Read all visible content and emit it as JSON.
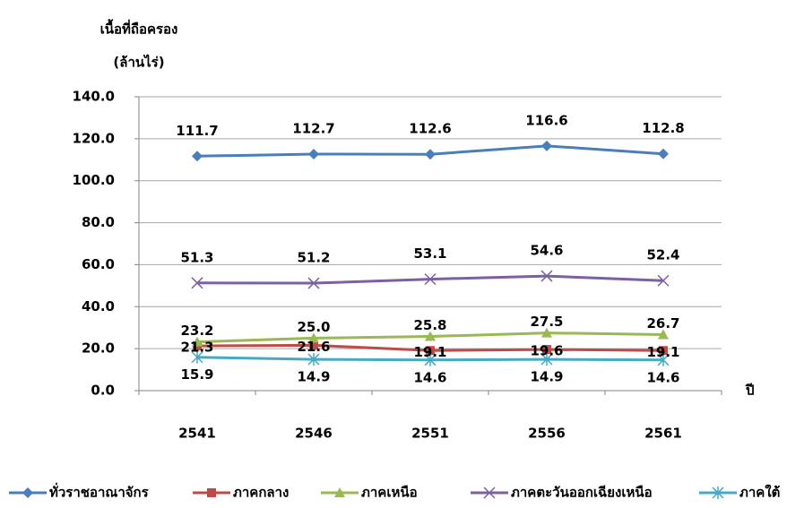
{
  "chart_data": {
    "type": "line",
    "y_axis_label": [
      "เนื้อที่ถือครอง",
      "(ล้านไร่)"
    ],
    "x_axis_label": "ปี",
    "categories": [
      "2541",
      "2546",
      "2551",
      "2556",
      "2561"
    ],
    "ylim": [
      0,
      140
    ],
    "yticks": [
      {
        "value": 0,
        "label": "0.0"
      },
      {
        "value": 20,
        "label": "20.0"
      },
      {
        "value": 40,
        "label": "40.0"
      },
      {
        "value": 60,
        "label": "60.0"
      },
      {
        "value": 80,
        "label": "80.0"
      },
      {
        "value": 100,
        "label": "100.0"
      },
      {
        "value": 120,
        "label": "120.0"
      },
      {
        "value": 140,
        "label": "140.0"
      }
    ],
    "grid": true,
    "legend": "bottom",
    "series": [
      {
        "name": "ทั่วราชอาณาจักร",
        "color": "#4a7ebb",
        "marker": "diamond",
        "values": [
          111.7,
          112.7,
          112.6,
          116.6,
          112.8
        ],
        "value_labels": [
          "111.7",
          "112.7",
          "112.6",
          "116.6",
          "112.8"
        ]
      },
      {
        "name": "ภาคกลาง",
        "color": "#be4b48",
        "marker": "square",
        "values": [
          21.3,
          21.6,
          19.1,
          19.6,
          19.1
        ],
        "value_labels": [
          "21.3",
          "21.6",
          "19.1",
          "19.6",
          "19.1"
        ]
      },
      {
        "name": "ภาคเหนือ",
        "color": "#98b954",
        "marker": "triangle",
        "values": [
          23.2,
          25.0,
          25.8,
          27.5,
          26.7
        ],
        "value_labels": [
          "23.2",
          "25.0",
          "25.8",
          "27.5",
          "26.7"
        ]
      },
      {
        "name": "ภาคตะวันออกเฉียงเหนือ",
        "color": "#7d60a0",
        "marker": "x",
        "values": [
          51.3,
          51.2,
          53.1,
          54.6,
          52.4
        ],
        "value_labels": [
          "51.3",
          "51.2",
          "53.1",
          "54.6",
          "52.4"
        ]
      },
      {
        "name": "ภาคใต้",
        "color": "#46aac5",
        "marker": "star",
        "values": [
          15.9,
          14.9,
          14.6,
          14.9,
          14.6
        ],
        "value_labels": [
          "15.9",
          "14.9",
          "14.6",
          "14.9",
          "14.6"
        ]
      }
    ]
  }
}
